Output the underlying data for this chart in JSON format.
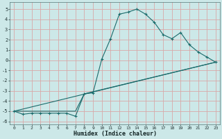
{
  "xlabel": "Humidex (Indice chaleur)",
  "bg_color": "#cce8e8",
  "grid_color": "#d8a8a8",
  "line_color": "#1a6b6b",
  "xlim": [
    -0.5,
    23.5
  ],
  "ylim": [
    -6.3,
    5.7
  ],
  "x_ticks": [
    0,
    1,
    2,
    3,
    4,
    5,
    6,
    7,
    8,
    9,
    10,
    11,
    12,
    13,
    14,
    15,
    16,
    17,
    18,
    19,
    20,
    21,
    22,
    23
  ],
  "y_ticks": [
    -6,
    -5,
    -4,
    -3,
    -2,
    -1,
    0,
    1,
    2,
    3,
    4,
    5
  ],
  "series1_x": [
    0,
    1,
    2,
    3,
    4,
    5,
    6,
    7,
    8,
    9,
    10,
    11,
    12,
    13,
    14,
    15,
    16,
    17,
    18,
    19,
    20,
    21,
    22,
    23
  ],
  "series1_y": [
    -5.0,
    -5.3,
    -5.2,
    -5.2,
    -5.2,
    -5.2,
    -5.2,
    -5.5,
    -3.3,
    -3.2,
    0.1,
    2.1,
    4.5,
    4.7,
    5.0,
    4.5,
    3.7,
    2.5,
    2.1,
    2.7,
    1.5,
    0.8,
    0.3,
    -0.2
  ],
  "series2_x": [
    0,
    7,
    8,
    23
  ],
  "series2_y": [
    -5.0,
    -5.0,
    -3.3,
    -0.2
  ],
  "series3_x": [
    0,
    23
  ],
  "series3_y": [
    -5.0,
    -0.2
  ],
  "marker_size": 3.0,
  "lw": 0.8
}
